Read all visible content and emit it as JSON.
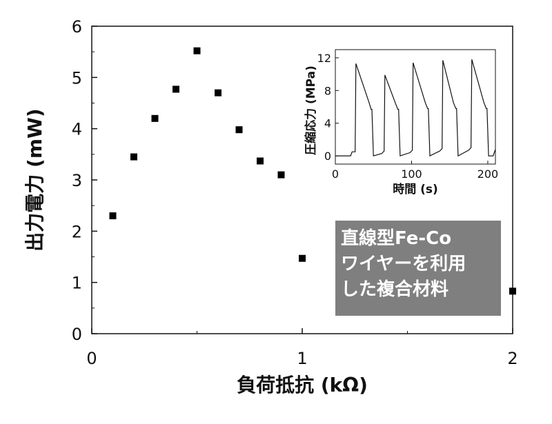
{
  "chart_data": [
    {
      "type": "scatter",
      "xlabel": "負荷抵抗 (kΩ)",
      "ylabel": "出力電力 (mW)",
      "xlim": [
        0,
        2
      ],
      "ylim": [
        0,
        6
      ],
      "xticks": [
        "0",
        "1",
        "2"
      ],
      "yticks": [
        "0",
        "1",
        "2",
        "3",
        "4",
        "5",
        "6"
      ],
      "points": [
        {
          "x": 0.1,
          "y": 2.3
        },
        {
          "x": 0.2,
          "y": 3.45
        },
        {
          "x": 0.3,
          "y": 4.2
        },
        {
          "x": 0.4,
          "y": 4.77
        },
        {
          "x": 0.5,
          "y": 5.52
        },
        {
          "x": 0.6,
          "y": 4.7
        },
        {
          "x": 0.7,
          "y": 3.98
        },
        {
          "x": 0.8,
          "y": 3.37
        },
        {
          "x": 0.9,
          "y": 3.1
        },
        {
          "x": 1.0,
          "y": 1.47
        },
        {
          "x": 2.0,
          "y": 0.83
        }
      ],
      "marker_color": "#000000"
    },
    {
      "type": "line",
      "xlabel": "時間 (s)",
      "ylabel": "圧縮応力 (MPa)",
      "xlim": [
        0,
        210
      ],
      "ylim": [
        -1,
        13
      ],
      "xticks": [
        "0",
        "100",
        "200"
      ],
      "yticks": [
        "0",
        "4",
        "8",
        "12"
      ],
      "x": [
        0,
        20,
        22,
        26,
        27,
        44,
        47,
        48,
        50,
        61,
        64,
        65,
        79,
        82,
        83,
        85,
        98,
        101,
        102,
        118,
        121,
        122,
        124,
        137,
        140,
        141,
        155,
        158,
        159,
        161,
        175,
        178,
        179,
        195,
        198,
        199,
        201,
        207,
        210
      ],
      "y": [
        0,
        0,
        0.5,
        0.5,
        11.3,
        6.6,
        5.7,
        5.7,
        0,
        0.3,
        0.6,
        9.9,
        6.4,
        5.7,
        5.7,
        0,
        0.4,
        0.7,
        11.4,
        6.5,
        5.8,
        5.8,
        0,
        0.6,
        0.9,
        11.7,
        6.5,
        5.8,
        5.8,
        0,
        0.7,
        1.0,
        11.8,
        6.5,
        5.8,
        5.8,
        0,
        0,
        0.8
      ],
      "line_color": "#111111"
    }
  ],
  "annotation": {
    "lines": [
      "直線型Fe-Co",
      "ワイヤーを利用",
      "した複合材料"
    ],
    "background": "#7f7f7f",
    "text_color": "#ffffff"
  }
}
